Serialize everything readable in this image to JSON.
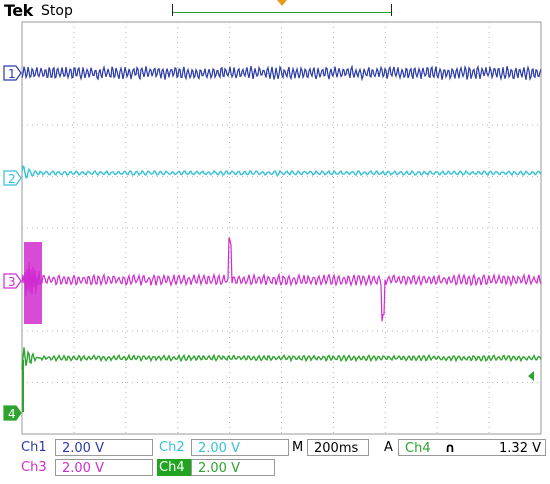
{
  "header": {
    "brand": "Tek",
    "state": "Stop"
  },
  "channels": [
    {
      "id": "1",
      "marker": "1",
      "color": "#2a3aa8"
    },
    {
      "id": "2",
      "marker": "2",
      "color": "#36c2d6"
    },
    {
      "id": "3",
      "marker": "3",
      "color": "#d02cd0"
    },
    {
      "id": "4",
      "marker": "4",
      "color": "#2ea32e"
    }
  ],
  "status": {
    "ch1_label": "Ch1",
    "ch1_scale": "2.00 V",
    "ch2_label": "Ch2",
    "ch2_scale": "2.00 V",
    "ch3_label": "Ch3",
    "ch3_scale": "2.00 V",
    "ch4_label": "Ch4",
    "ch4_scale": "2.00 V",
    "timebase_prefix": "M",
    "timebase": "200ms",
    "trigger_prefix": "A",
    "trigger_source": "Ch4",
    "trigger_slope": "∩",
    "trigger_level": "1.32 V"
  }
}
